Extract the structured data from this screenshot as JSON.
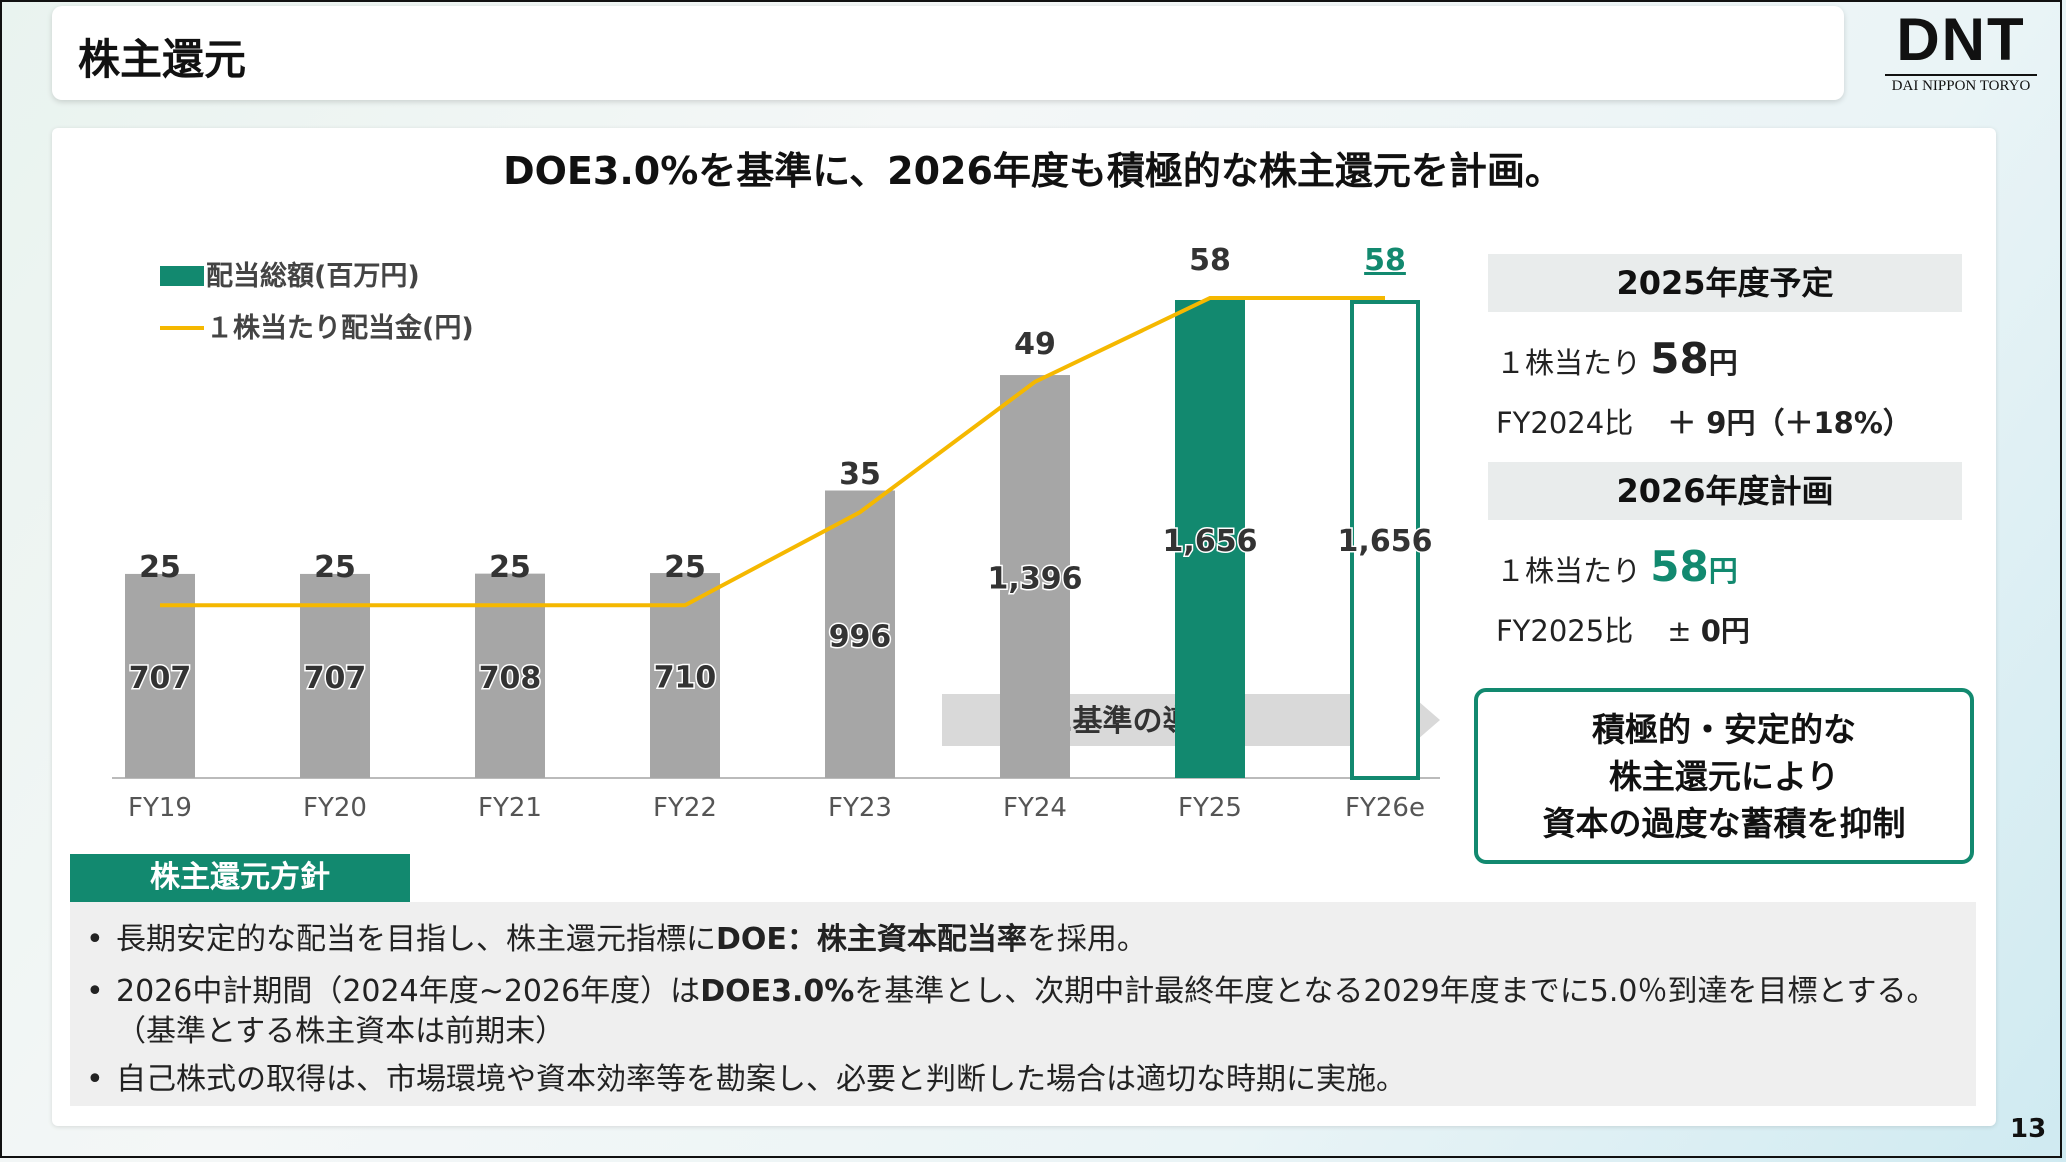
{
  "header": {
    "title": "株主還元",
    "logo_main": "DNT",
    "logo_sub": "DAI NIPPON TORYO"
  },
  "headline": "DOE3.0%を基準に、2026年度も積極的な株主還元を計画。",
  "chart_data": {
    "type": "bar",
    "categories": [
      "FY19",
      "FY20",
      "FY21",
      "FY22",
      "FY23",
      "FY24",
      "FY25",
      "FY26e"
    ],
    "series": [
      {
        "name": "配当総額(百万円)",
        "kind": "bar",
        "values": [
          707,
          707,
          708,
          710,
          996,
          1396,
          1656,
          1656
        ],
        "labels": [
          "707",
          "707",
          "708",
          "710",
          "996",
          "1,396",
          "1,656",
          "1,656"
        ]
      },
      {
        "name": "１株当たり配当金(円)",
        "kind": "line",
        "values": [
          25,
          25,
          25,
          25,
          35,
          49,
          58,
          58
        ],
        "labels": [
          "25",
          "25",
          "25",
          "25",
          "35",
          "49",
          "58",
          "58"
        ]
      }
    ],
    "ylim_bar": [
      0,
      1656
    ],
    "ylim_line": [
      0,
      58
    ],
    "legend": "top-left",
    "grid": false,
    "annotation": "DOE基準の導入",
    "colors": {
      "bar": "#a6a6a6",
      "bar_highlight": "#12896f",
      "line": "#f5b800",
      "forecast_label": "#12896f"
    }
  },
  "right_panel": {
    "box1": {
      "heading": "2025年度予定",
      "line1_prefix": "１株当たり",
      "line1_value": "58",
      "line1_unit": "円",
      "line2_prefix": "FY2024比",
      "line2_value": "＋ 9円（＋18%）"
    },
    "box2": {
      "heading": "2026年度計画",
      "line1_prefix": "１株当たり",
      "line1_value": "58",
      "line1_unit": "円",
      "line2_prefix": "FY2025比",
      "line2_value_sign": "± ",
      "line2_value": "0円"
    },
    "callout": [
      "積極的・安定的な",
      "株主還元により",
      "資本の過度な蓄積を抑制"
    ]
  },
  "policy": {
    "tab": "株主還元方針",
    "b1_pre": "長期安定的な配当を目指し、株主還元指標に",
    "b1_bold": "DOE：株主資本配当率",
    "b1_post": "を採用。",
    "b2_pre": "2026中計期間（2024年度~2026年度）は",
    "b2_bold": "DOE3.0%",
    "b2_post": "を基準とし、次期中計最終年度となる2029年度までに5.0％到達を目標とする。",
    "b2_cont": "（基準とする株主資本は前期末）",
    "b3": "自己株式の取得は、市場環境や資本効率等を勘案し、必要と判断した場合は適切な時期に実施。"
  },
  "page_number": "13"
}
